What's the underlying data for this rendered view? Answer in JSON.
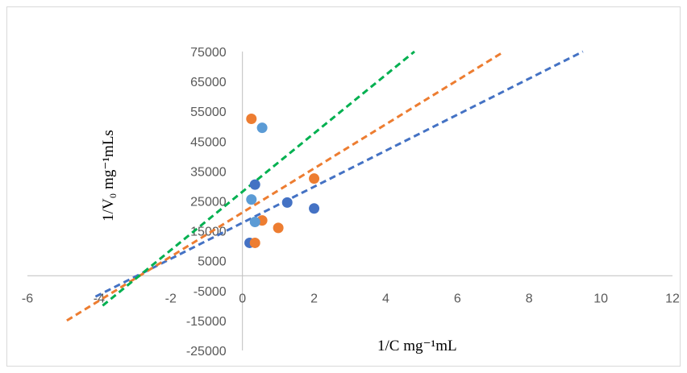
{
  "chart_data": {
    "type": "scatter",
    "xlabel": "1/C mg⁻¹mL",
    "ylabel": "1/V₀ mg⁻¹mLs",
    "xlim": [
      -6,
      12
    ],
    "ylim": [
      -25000,
      75000
    ],
    "x_ticks": [
      -6,
      -4,
      -2,
      0,
      2,
      4,
      6,
      8,
      10,
      12
    ],
    "y_ticks": [
      -25000,
      -15000,
      -5000,
      5000,
      15000,
      25000,
      35000,
      45000,
      55000,
      65000,
      75000
    ],
    "y_tick_labels": [
      "-25000",
      "-15000",
      "-5000",
      "5000",
      "15000",
      "25000",
      "35000",
      "45000",
      "55000",
      "65000",
      "75000"
    ],
    "grid": false,
    "series": [
      {
        "color": "#4472c4",
        "marker": "circle",
        "points": [
          [
            0.2,
            11000
          ],
          [
            0.35,
            30500
          ],
          [
            1.25,
            24500
          ],
          [
            2.0,
            22500
          ]
        ],
        "trendline": {
          "style": "dashed",
          "x": [
            -4.1,
            9.5
          ],
          "y": [
            -7000,
            75000
          ]
        }
      },
      {
        "color": "#ed7d31",
        "marker": "circle",
        "points": [
          [
            0.25,
            52500
          ],
          [
            0.35,
            11000
          ],
          [
            0.55,
            18500
          ],
          [
            1.0,
            16000
          ],
          [
            2.0,
            32500
          ]
        ],
        "trendline": {
          "style": "dashed",
          "x": [
            -4.9,
            7.3
          ],
          "y": [
            -15000,
            75000
          ]
        }
      },
      {
        "color": "#5b9bd5",
        "marker": "circle",
        "points": [
          [
            0.25,
            25500
          ],
          [
            0.35,
            18000
          ],
          [
            0.55,
            49500
          ]
        ],
        "trendline": null
      },
      {
        "color": "#00b050",
        "marker": "none",
        "points": [],
        "trendline": {
          "style": "dashed",
          "x": [
            -3.9,
            4.8
          ],
          "y": [
            -10000,
            75000
          ]
        }
      }
    ]
  }
}
